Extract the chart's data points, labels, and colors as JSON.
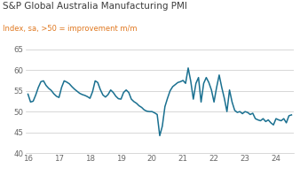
{
  "title": "S&P Global Australia Manufacturing PMI",
  "subtitle": "Index, sa, >50 = improvement m/m",
  "title_color": "#3c3c3c",
  "subtitle_color": "#e07820",
  "line_color": "#1a7090",
  "background_color": "#ffffff",
  "grid_color": "#c8c8c8",
  "ylim": [
    40,
    65
  ],
  "yticks": [
    40,
    45,
    50,
    55,
    60,
    65
  ],
  "xlim": [
    15.92,
    24.58
  ],
  "xticks": [
    16,
    17,
    18,
    19,
    20,
    21,
    22,
    23,
    24
  ],
  "x_values": [
    16.0,
    16.083,
    16.167,
    16.25,
    16.333,
    16.417,
    16.5,
    16.583,
    16.667,
    16.75,
    16.833,
    16.917,
    17.0,
    17.083,
    17.167,
    17.25,
    17.333,
    17.417,
    17.5,
    17.583,
    17.667,
    17.75,
    17.833,
    17.917,
    18.0,
    18.083,
    18.167,
    18.25,
    18.333,
    18.417,
    18.5,
    18.583,
    18.667,
    18.75,
    18.833,
    18.917,
    19.0,
    19.083,
    19.167,
    19.25,
    19.333,
    19.417,
    19.5,
    19.583,
    19.667,
    19.75,
    19.833,
    19.917,
    20.0,
    20.083,
    20.167,
    20.25,
    20.333,
    20.417,
    20.5,
    20.583,
    20.667,
    20.75,
    20.833,
    20.917,
    21.0,
    21.083,
    21.167,
    21.25,
    21.333,
    21.417,
    21.5,
    21.583,
    21.667,
    21.75,
    21.833,
    21.917,
    22.0,
    22.083,
    22.167,
    22.25,
    22.333,
    22.417,
    22.5,
    22.583,
    22.667,
    22.75,
    22.833,
    22.917,
    23.0,
    23.083,
    23.167,
    23.25,
    23.333,
    23.417,
    23.5,
    23.583,
    23.667,
    23.75,
    23.833,
    23.917,
    24.0,
    24.083,
    24.167,
    24.25,
    24.333,
    24.417,
    24.5
  ],
  "y_values": [
    54.2,
    52.3,
    52.5,
    54.0,
    55.8,
    57.2,
    57.4,
    56.3,
    55.6,
    55.1,
    54.3,
    53.7,
    53.4,
    55.8,
    57.4,
    57.1,
    56.7,
    56.0,
    55.4,
    54.9,
    54.4,
    54.1,
    53.9,
    53.6,
    53.2,
    54.8,
    57.4,
    57.0,
    55.3,
    54.0,
    53.5,
    54.1,
    55.2,
    54.6,
    53.7,
    53.1,
    53.0,
    54.6,
    55.2,
    54.6,
    53.0,
    52.4,
    52.0,
    51.4,
    51.0,
    50.4,
    50.1,
    50.0,
    50.0,
    49.7,
    49.3,
    44.2,
    46.5,
    51.2,
    53.2,
    55.0,
    56.0,
    56.5,
    57.0,
    57.2,
    57.5,
    56.8,
    60.5,
    57.3,
    53.0,
    56.8,
    58.2,
    52.3,
    56.8,
    58.2,
    57.0,
    55.2,
    52.3,
    55.8,
    58.8,
    55.8,
    53.2,
    50.0,
    55.2,
    52.3,
    50.3,
    49.8,
    50.0,
    49.5,
    50.0,
    49.8,
    49.3,
    49.6,
    48.3,
    48.0,
    47.8,
    48.3,
    47.6,
    48.0,
    47.3,
    46.8,
    48.3,
    48.0,
    47.8,
    48.3,
    47.3,
    49.0,
    49.2
  ],
  "title_fontsize": 7.5,
  "subtitle_fontsize": 6.0,
  "tick_fontsize": 6.2,
  "linewidth": 1.1
}
